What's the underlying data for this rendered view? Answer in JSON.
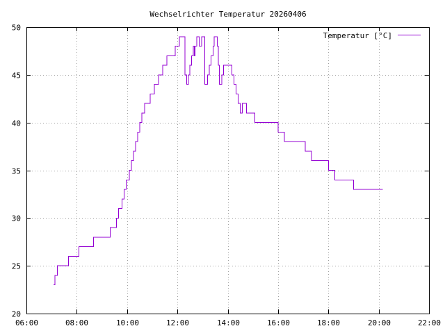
{
  "chart_data": {
    "type": "line",
    "title": "Wechselrichter Temperatur 20260406",
    "xlabel": "",
    "ylabel": "",
    "grid": true,
    "legend_position": "top-right",
    "xlim": [
      "06:00",
      "22:00"
    ],
    "ylim": [
      20,
      50
    ],
    "x_ticks": [
      "06:00",
      "08:00",
      "10:00",
      "12:00",
      "14:00",
      "16:00",
      "18:00",
      "20:00",
      "22:00"
    ],
    "y_ticks": [
      20,
      25,
      30,
      35,
      40,
      45,
      50
    ],
    "series": [
      {
        "name": "Temperatur [°C]",
        "color": "#9400d3",
        "step": true,
        "x": [
          "07:05",
          "07:08",
          "07:14",
          "07:25",
          "07:40",
          "08:05",
          "08:40",
          "09:20",
          "09:30",
          "09:35",
          "09:40",
          "09:48",
          "09:53",
          "09:58",
          "10:05",
          "10:10",
          "10:15",
          "10:20",
          "10:25",
          "10:30",
          "10:35",
          "10:42",
          "10:48",
          "10:55",
          "11:05",
          "11:15",
          "11:25",
          "11:35",
          "11:45",
          "11:55",
          "12:05",
          "12:15",
          "12:18",
          "12:22",
          "12:26",
          "12:30",
          "12:34",
          "12:38",
          "12:40",
          "12:42",
          "12:46",
          "12:52",
          "12:58",
          "13:02",
          "13:05",
          "13:08",
          "13:12",
          "13:16",
          "13:20",
          "13:25",
          "13:28",
          "13:32",
          "13:35",
          "13:38",
          "13:40",
          "13:42",
          "13:46",
          "13:50",
          "13:55",
          "14:05",
          "14:10",
          "14:15",
          "14:20",
          "14:25",
          "14:30",
          "14:35",
          "14:40",
          "14:45",
          "14:50",
          "15:05",
          "15:35",
          "16:00",
          "16:15",
          "17:05",
          "17:20",
          "18:00",
          "18:15",
          "19:00",
          "20:10"
        ],
        "values": [
          23,
          24,
          25,
          25,
          26,
          27,
          28,
          29,
          29,
          30,
          31,
          32,
          33,
          34,
          35,
          36,
          37,
          38,
          39,
          40,
          41,
          42,
          42,
          43,
          44,
          45,
          46,
          47,
          47,
          48,
          49,
          49,
          45,
          44,
          45,
          46,
          47,
          48,
          47,
          48,
          49,
          48,
          49,
          49,
          44,
          44,
          45,
          46,
          47,
          48,
          49,
          49,
          48,
          46,
          44,
          44,
          45,
          46,
          46,
          46,
          45,
          44,
          43,
          42,
          41,
          42,
          42,
          41,
          41,
          40,
          40,
          39,
          38,
          37,
          36,
          35,
          34,
          33,
          33
        ]
      }
    ]
  }
}
